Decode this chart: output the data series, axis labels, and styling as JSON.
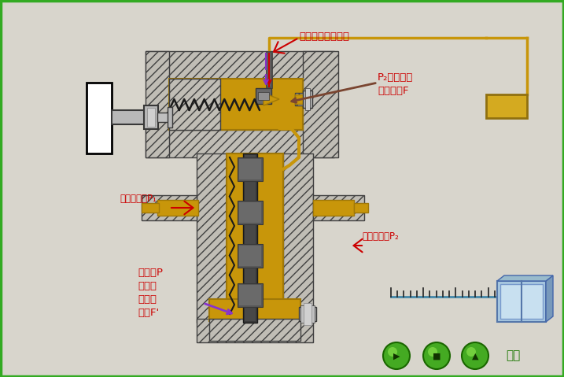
{
  "bg_color": "#d8d5cc",
  "gold": "#c8960a",
  "gold_dark": "#a07808",
  "hatch_fc": "#c0bdb5",
  "hatch_ec": "#404040",
  "dark_gray": "#383838",
  "med_gray": "#686868",
  "light_gray": "#b8b8b8",
  "red": "#cc0000",
  "purple": "#8833cc",
  "brown": "#7a4530",
  "green_btn": "#3a9918",
  "green_dark": "#1a6608",
  "green_light": "#88dd44",
  "blue_box": "#a8c8e0",
  "blue_box2": "#c8e0f0",
  "blue_box3": "#7899bb",
  "ann1_text": "由小孔溢流回油筱",
  "ann2_text": "P₂等于或大\n于弹簧力F",
  "ann3_text": "一次压力油P₁",
  "ann4_text": "二次压力油P₂",
  "ann5_text": "压力巪P\n等于或\n大于弹\n簧力F'",
  "btn_text": "返回"
}
